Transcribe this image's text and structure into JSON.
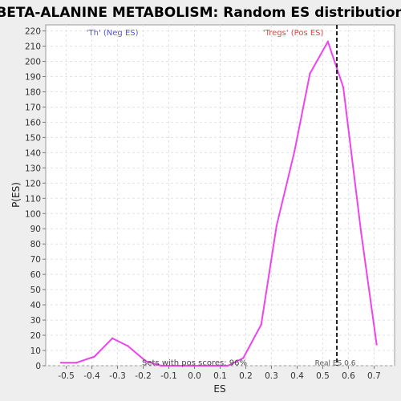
{
  "chart_data": {
    "type": "line",
    "title": "BETA-ALANINE METABOLISM: Random ES distribution",
    "xlabel": "ES",
    "ylabel": "P(ES)",
    "xlim": [
      -0.58,
      0.78
    ],
    "ylim": [
      0,
      224
    ],
    "x_ticks": [
      -0.5,
      -0.4,
      -0.3,
      -0.2,
      -0.1,
      0.0,
      0.1,
      0.2,
      0.3,
      0.4,
      0.5,
      0.6,
      0.7
    ],
    "x_tick_labels": [
      "-0.5",
      "-0.4",
      "-0.3",
      "-0.2",
      "-0.1",
      "0.0",
      "0.1",
      "0.2",
      "0.3",
      "0.4",
      "0.5",
      "0.6",
      "0.7"
    ],
    "y_ticks": [
      0,
      10,
      20,
      30,
      40,
      50,
      60,
      70,
      80,
      90,
      100,
      110,
      120,
      130,
      140,
      150,
      160,
      170,
      180,
      190,
      200,
      210,
      220
    ],
    "y_tick_labels": [
      "0",
      "10",
      "20",
      "30",
      "40",
      "50",
      "60",
      "70",
      "80",
      "90",
      "100",
      "110",
      "120",
      "130",
      "140",
      "150",
      "160",
      "170",
      "180",
      "190",
      "200",
      "210",
      "220"
    ],
    "grid": true,
    "series": [
      {
        "color": "#ee44ee",
        "x": [
          -0.52,
          -0.46,
          -0.39,
          -0.32,
          -0.26,
          -0.19,
          -0.13,
          -0.06,
          0.0,
          0.06,
          0.13,
          0.19,
          0.26,
          0.32,
          0.39,
          0.45,
          0.52,
          0.58,
          0.65,
          0.71
        ],
        "y": [
          2,
          2,
          6,
          18,
          13,
          3,
          0,
          0,
          0,
          0,
          0,
          5,
          27,
          92,
          141,
          192,
          213,
          183,
          87,
          14
        ]
      }
    ],
    "legend": {
      "neg_label": "'Th' (Neg ES)",
      "pos_label": "'Tregs' (Pos ES)",
      "neg_color": "#5555dd",
      "pos_color": "#e04545"
    },
    "real_es": {
      "x": 0.555,
      "label": "Real ES 0.6"
    },
    "annotation": "Sets with pos scores: 96%"
  }
}
